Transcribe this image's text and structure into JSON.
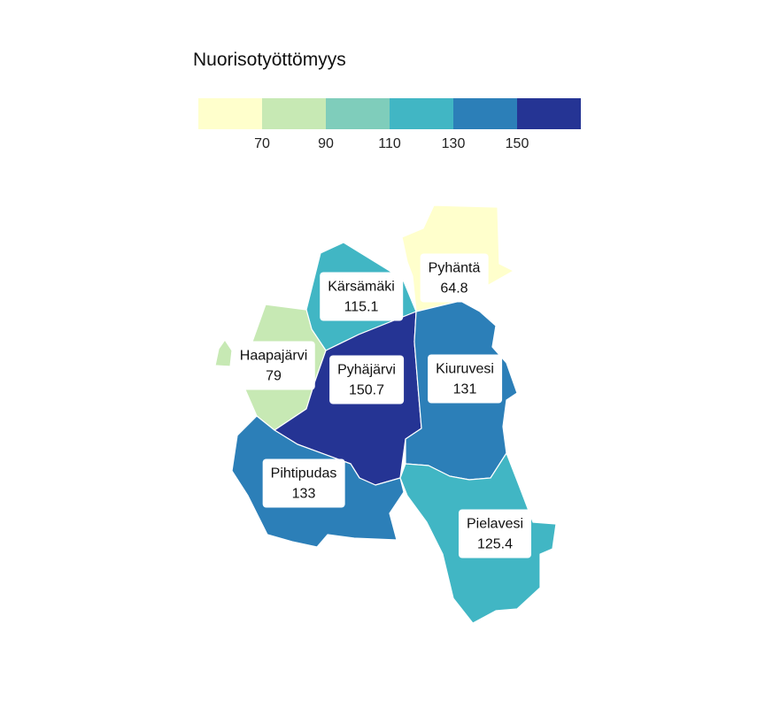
{
  "legend": {
    "title": "Nuorisotyöttömyys",
    "colors": [
      "#ffffcc",
      "#c7e9b4",
      "#7fcdbb",
      "#41b6c4",
      "#2c7fb8",
      "#253494"
    ],
    "ticks": [
      "70",
      "90",
      "110",
      "130",
      "150"
    ]
  },
  "regions": [
    {
      "id": "pyhanta",
      "name": "Pyhäntä",
      "value": "64.8",
      "color": "#ffffcc"
    },
    {
      "id": "karsamaki",
      "name": "Kärsämäki",
      "value": "115.1",
      "color": "#41b6c4"
    },
    {
      "id": "haapajarvi",
      "name": "Haapajärvi",
      "value": "79",
      "color": "#c7e9b4"
    },
    {
      "id": "pyhajarvi",
      "name": "Pyhäjärvi",
      "value": "150.7",
      "color": "#253494"
    },
    {
      "id": "kiuruvesi",
      "name": "Kiuruvesi",
      "value": "131",
      "color": "#2c7fb8"
    },
    {
      "id": "pihtipudas",
      "name": "Pihtipudas",
      "value": "133",
      "color": "#2c7fb8"
    },
    {
      "id": "pielavesi",
      "name": "Pielavesi",
      "value": "125.4",
      "color": "#41b6c4"
    }
  ]
}
